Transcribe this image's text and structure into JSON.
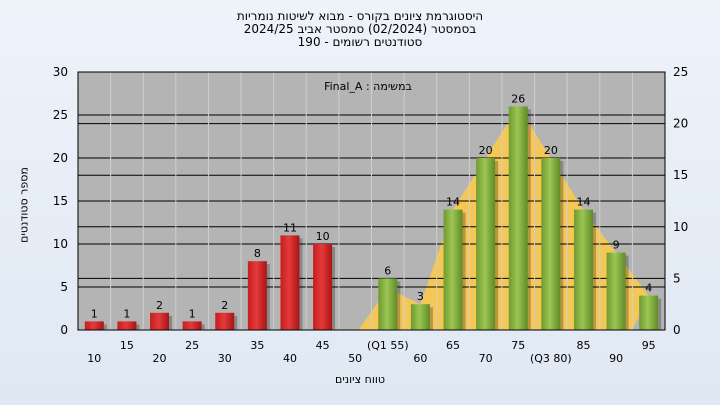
{
  "title": {
    "line1": "היסטוגרמת ציונים בקורס - מבוא לשיטות נומריות",
    "line2": "בסמסטר  (02/2024)  סמסטר אביב 2024/25",
    "line3": "סטודנטים רשומים - 190"
  },
  "chart_data": {
    "type": "bar",
    "annotation": "במשימה : Final_A",
    "ylabel": "מספר סטודנטים",
    "xlabel": "טווח ציונים",
    "ylim": [
      0,
      30
    ],
    "y2lim": [
      0,
      25
    ],
    "yticks": [
      0,
      5,
      10,
      15,
      20,
      25,
      30
    ],
    "y2ticks": [
      0,
      5,
      10,
      15,
      20,
      25
    ],
    "grid": true,
    "categories": [
      "10",
      "15",
      "20",
      "25",
      "30",
      "35",
      "40",
      "45",
      "50",
      "(Q1 55)",
      "60",
      "65",
      "70",
      "75",
      "(Q3 80)",
      "85",
      "90",
      "95"
    ],
    "values": [
      1,
      1,
      2,
      1,
      2,
      8,
      11,
      10,
      null,
      6,
      3,
      14,
      20,
      26,
      20,
      14,
      9,
      4
    ],
    "value_labels": [
      "1",
      "1",
      "2",
      "1",
      "2",
      "8",
      "11",
      "10",
      "",
      "6",
      "3",
      "14",
      "20",
      "26",
      "20",
      "14",
      "9",
      "4"
    ],
    "threshold_category": "55",
    "colors": {
      "fail_bar": "#e43a3a",
      "pass_bar": "#9cc653",
      "area_fill": "#fbc94c",
      "plot_background": "#b4b4b4",
      "grid_line": "#000000"
    }
  }
}
